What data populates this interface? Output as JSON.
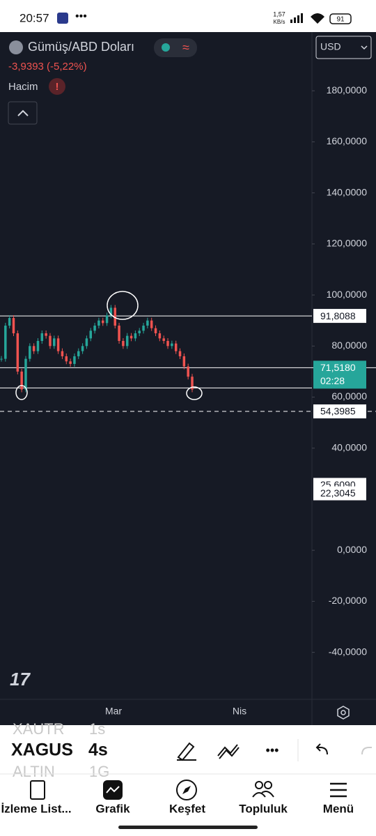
{
  "status_bar": {
    "time": "20:57",
    "net_speed": "1,57",
    "net_unit": "KB/s",
    "battery": "91"
  },
  "header": {
    "symbol": "Gümüş/ABD Doları",
    "change": "-3,9393 (-5,22%)",
    "volume_label": "Hacim",
    "currency": "USD"
  },
  "chart_data": {
    "type": "candlestick",
    "values": [
      75,
      88,
      91,
      85,
      70,
      63,
      75,
      80,
      78,
      82,
      85,
      84,
      80,
      83,
      78,
      76,
      74,
      73,
      76,
      78,
      80,
      83,
      86,
      88,
      90,
      89,
      92,
      95,
      88,
      82,
      80,
      84,
      83,
      85,
      86,
      88,
      90,
      87,
      85,
      83,
      82,
      80,
      81,
      78,
      76,
      72,
      68,
      63
    ],
    "up_color": "#26a69a",
    "down_color": "#ef5350",
    "ylim": [
      -58.4,
      203
    ],
    "yticks": [
      {
        "value": 180,
        "label": "180,0000"
      },
      {
        "value": 160,
        "label": "160,0000"
      },
      {
        "value": 140,
        "label": "140,0000"
      },
      {
        "value": 120,
        "label": "120,0000"
      },
      {
        "value": 100,
        "label": "100,0000"
      },
      {
        "value": 80,
        "label": "80,0000"
      },
      {
        "value": 60,
        "label": "60,0000"
      },
      {
        "value": 40,
        "label": "40,0000"
      },
      {
        "value": 0,
        "label": "0,0000"
      },
      {
        "value": -20,
        "label": "-20,0000"
      },
      {
        "value": -40,
        "label": "-40,0000"
      }
    ],
    "price_labels": [
      {
        "value": 91.8088,
        "label": "91,8088"
      },
      {
        "value": 71.518,
        "label": "71,5180"
      },
      {
        "value": 54.3985,
        "label": "54,3985"
      },
      {
        "value": 25.609,
        "label": "25,6090"
      },
      {
        "value": 22.3045,
        "label": "22,3045"
      }
    ],
    "levels": [
      91.8088,
      63.6
    ],
    "countdown": "02:28",
    "x_labels": [
      "Mar",
      "Nis"
    ]
  },
  "watchlist": [
    {
      "symbol": "XAUTR",
      "interval": "1s"
    },
    {
      "symbol": "XAGUS",
      "interval": "4s"
    },
    {
      "symbol": "ALTIN",
      "interval": "1G"
    }
  ],
  "nav": [
    "İzleme List...",
    "Grafik",
    "Keşfet",
    "Topluluk",
    "Menü"
  ]
}
